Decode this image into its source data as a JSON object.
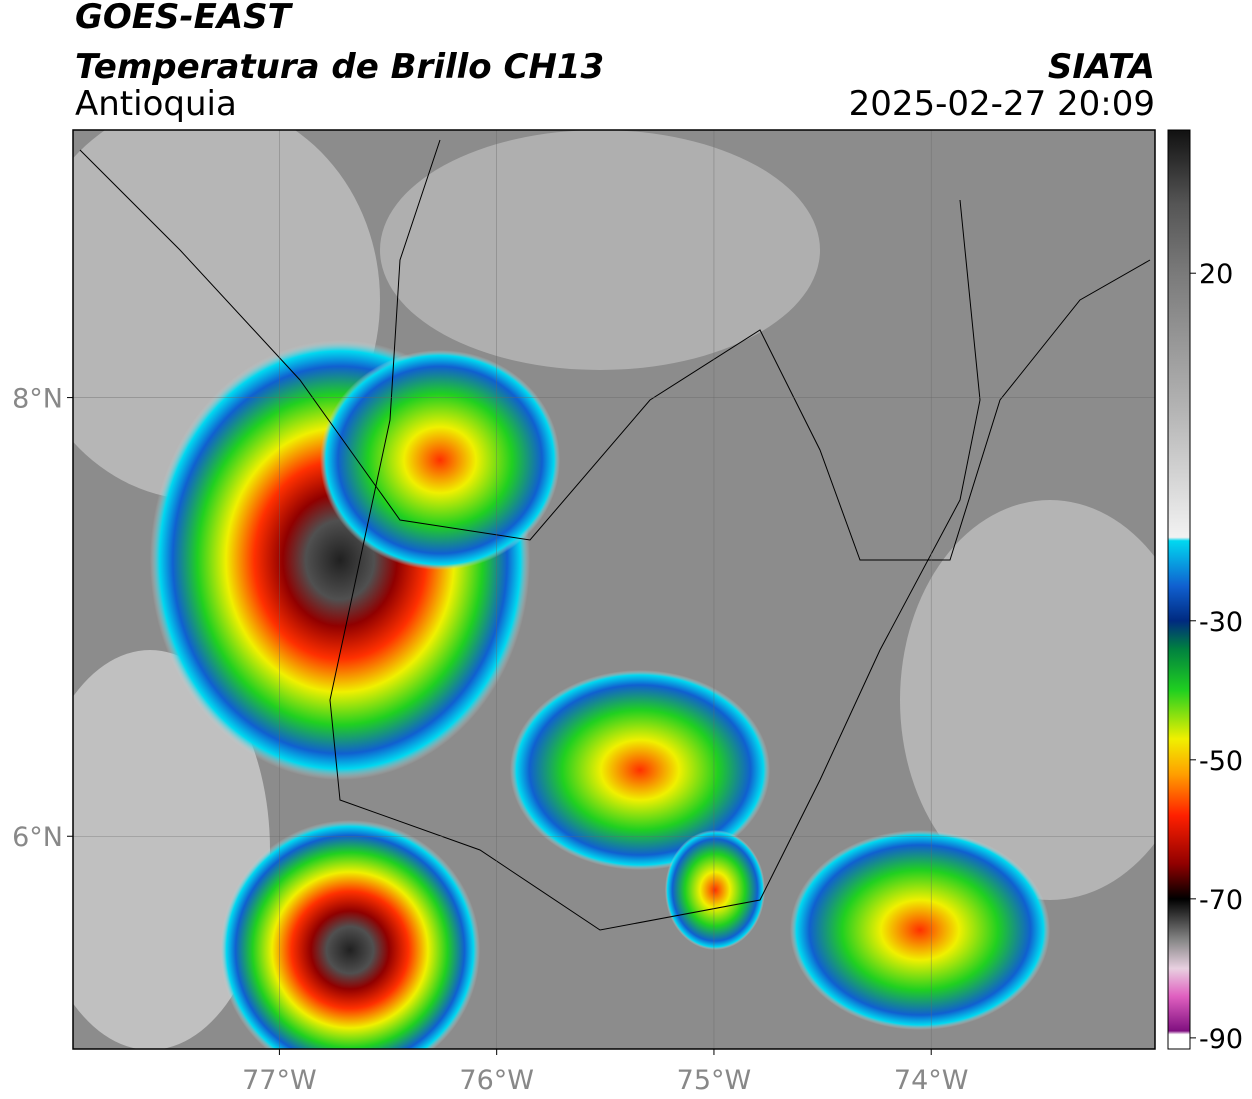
{
  "header": {
    "title": "GOES-EAST",
    "subtitle": "Temperatura de Brillo CH13",
    "region": "Antioquia",
    "source": "SIATA",
    "datetime": "2025-02-27 20:09"
  },
  "map": {
    "xlim": [
      -77.95,
      -72.97
    ],
    "ylim": [
      5.03,
      9.22
    ],
    "xticks": [
      {
        "value": -77,
        "label": "77°W"
      },
      {
        "value": -76,
        "label": "76°W"
      },
      {
        "value": -75,
        "label": "75°W"
      },
      {
        "value": -74,
        "label": "74°W"
      }
    ],
    "yticks": [
      {
        "value": 6,
        "label": "6°N"
      },
      {
        "value": 8,
        "label": "8°N"
      }
    ],
    "grid": true
  },
  "colorbar": {
    "clim": [
      -91.6,
      40.6
    ],
    "ticks": [
      20,
      -30,
      -50,
      -70,
      -90
    ],
    "stops": [
      [
        40.6,
        "#111111"
      ],
      [
        30,
        "#555555"
      ],
      [
        20,
        "#7a7a7a"
      ],
      [
        0,
        "#b5b5b5"
      ],
      [
        -18,
        "#f2f2f2"
      ],
      [
        -18.5,
        "#00d8f0"
      ],
      [
        -25,
        "#1060d0"
      ],
      [
        -30,
        "#002a80"
      ],
      [
        -34,
        "#008040"
      ],
      [
        -40,
        "#20d020"
      ],
      [
        -47,
        "#f0f000"
      ],
      [
        -52,
        "#ffa000"
      ],
      [
        -58,
        "#ff2000"
      ],
      [
        -65,
        "#900000"
      ],
      [
        -70,
        "#000000"
      ],
      [
        -76,
        "#888888"
      ],
      [
        -80,
        "#e8d0e0"
      ],
      [
        -84,
        "#e060c0"
      ],
      [
        -89,
        "#801080"
      ],
      [
        -89.5,
        "#ffffff"
      ],
      [
        -91.6,
        "#ffffff"
      ]
    ]
  }
}
